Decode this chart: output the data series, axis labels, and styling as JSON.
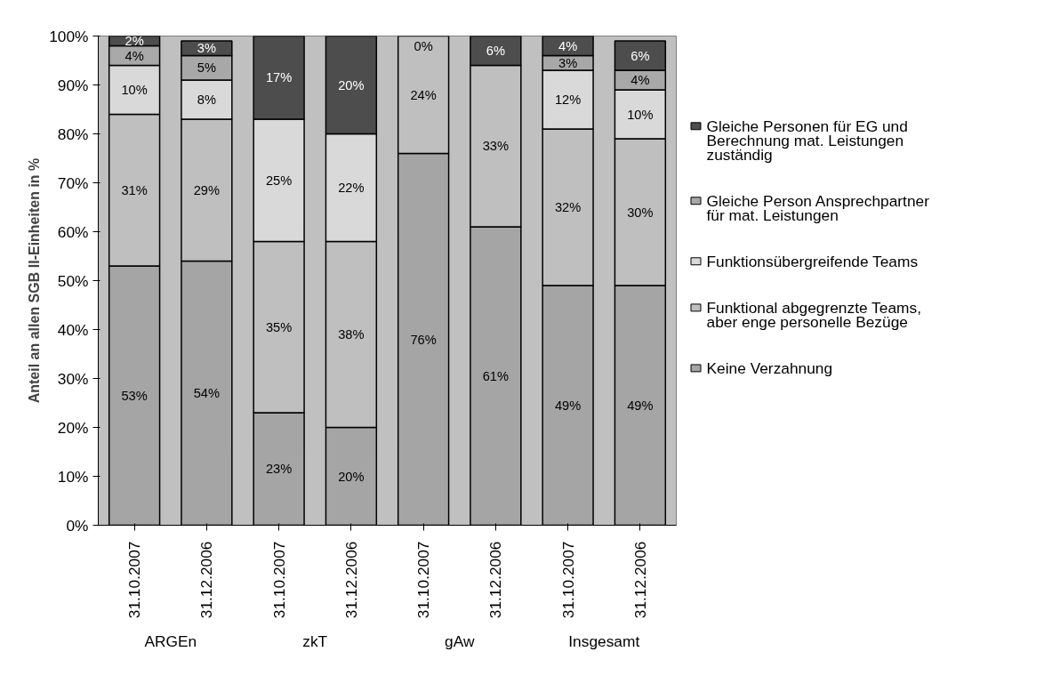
{
  "chart_data": {
    "type": "bar",
    "stacked": true,
    "ylabel": "Anteil an allen SGB II-Einheiten in %",
    "categories": [
      "31.10.2007",
      "31.12.2006",
      "31.10.2007",
      "31.12.2006",
      "31.10.2007",
      "31.12.2006",
      "31.10.2007",
      "31.12.2006"
    ],
    "annotations": [
      "ARGEn",
      "zkT",
      "gAw",
      "Insgesamt"
    ],
    "series": [
      {
        "name": "Keine Verzahnung",
        "color": "#a5a5a5",
        "values": [
          53,
          54,
          23,
          20,
          76,
          61,
          49,
          49
        ],
        "value_labels": [
          "53%",
          "54%",
          "23%",
          "20%",
          "76%",
          "61%",
          "49%",
          "49%"
        ]
      },
      {
        "name": "Funktional abgegrenzte Teams, aber enge personelle Bezüge",
        "color": "#bfbfbf",
        "values": [
          31,
          29,
          35,
          38,
          24,
          33,
          32,
          30
        ],
        "value_labels": [
          "31%",
          "29%",
          "35%",
          "38%",
          "24%",
          "33%",
          "32%",
          "30%"
        ]
      },
      {
        "name": "Funktionsübergreifende Teams",
        "color": "#d9d9d9",
        "values": [
          10,
          8,
          25,
          22,
          null,
          null,
          12,
          10
        ],
        "value_labels": [
          "10%",
          "8%",
          "25%",
          "22%",
          null,
          null,
          "12%",
          "10%"
        ]
      },
      {
        "name": "Gleiche Person Ansprechpartner für mat. Leistungen",
        "color": "#a8a8a8",
        "values": [
          4,
          5,
          null,
          null,
          null,
          null,
          3,
          4
        ],
        "value_labels": [
          "4%",
          "5%",
          null,
          null,
          null,
          null,
          "3%",
          "4%"
        ]
      },
      {
        "name": "Gleiche Personen für EG und Berechnung mat. Leistungen zuständig",
        "color": "#4d4d4d",
        "values": [
          2,
          3,
          17,
          20,
          0,
          6,
          4,
          6
        ],
        "value_labels": [
          "2%",
          "3%",
          "17%",
          "20%",
          "0%",
          "6%",
          "4%",
          "6%"
        ]
      }
    ],
    "ylim": [
      0,
      100
    ],
    "yticks": [
      {
        "value": 0,
        "label": "0%"
      },
      {
        "value": 10,
        "label": "10%"
      },
      {
        "value": 20,
        "label": "20%"
      },
      {
        "value": 30,
        "label": "30%"
      },
      {
        "value": 40,
        "label": "40%"
      },
      {
        "value": 50,
        "label": "50%"
      },
      {
        "value": 60,
        "label": "60%"
      },
      {
        "value": 70,
        "label": "70%"
      },
      {
        "value": 80,
        "label": "80%"
      },
      {
        "value": 90,
        "label": "90%"
      },
      {
        "value": 100,
        "label": "100%"
      }
    ],
    "grid": false,
    "legend": "right"
  }
}
